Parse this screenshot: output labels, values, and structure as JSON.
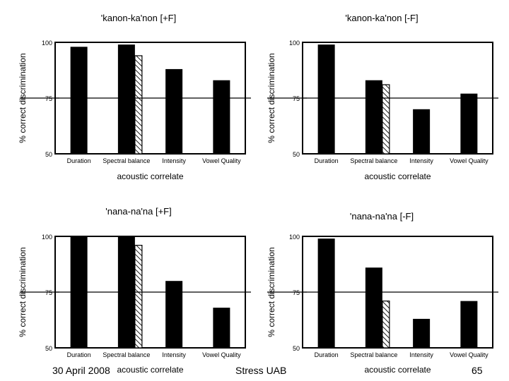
{
  "slide": {
    "footer_date": "30 April 2008",
    "footer_center": "Stress UAB",
    "page_number": "65"
  },
  "chart_data": [
    {
      "type": "bar",
      "title": "'kanon-ka'non [+F]",
      "xlabel": "acoustic correlate",
      "ylabel": "% correct discrimination",
      "ylim": [
        50,
        100
      ],
      "yticks": [
        "100",
        "75",
        "50"
      ],
      "reference_line": 75,
      "categories": [
        "Duration",
        "Spectral balance",
        "Intensity",
        "Vowel Quality"
      ],
      "series": [
        {
          "name": "solid",
          "values": [
            98,
            99,
            88,
            83
          ]
        },
        {
          "name": "hatched",
          "values": [
            null,
            94,
            null,
            null
          ]
        }
      ]
    },
    {
      "type": "bar",
      "title": "'kanon-ka'non [-F]",
      "xlabel": "acoustic correlate",
      "ylabel": "% correct discrimination",
      "ylim": [
        50,
        100
      ],
      "yticks": [
        "100",
        "75",
        "50"
      ],
      "reference_line": 75,
      "categories": [
        "Duration",
        "Spectral balance",
        "Intensity",
        "Vowel Quality"
      ],
      "series": [
        {
          "name": "solid",
          "values": [
            99,
            83,
            70,
            77
          ]
        },
        {
          "name": "hatched",
          "values": [
            null,
            81,
            null,
            null
          ]
        }
      ]
    },
    {
      "type": "bar",
      "title": "'nana-na'na [+F]",
      "xlabel": "acoustic correlate",
      "ylabel": "% correct discrimination",
      "ylim": [
        50,
        100
      ],
      "yticks": [
        "100",
        "75",
        "50"
      ],
      "reference_line": 75,
      "categories": [
        "Duration",
        "Spectral balance",
        "Intensity",
        "Vowel Quality"
      ],
      "series": [
        {
          "name": "solid",
          "values": [
            100,
            100,
            80,
            68
          ]
        },
        {
          "name": "hatched",
          "values": [
            null,
            96,
            null,
            null
          ]
        }
      ]
    },
    {
      "type": "bar",
      "title": "'nana-na'na [-F]",
      "xlabel": "acoustic correlate",
      "ylabel": "% correct discrimination",
      "ylim": [
        50,
        100
      ],
      "yticks": [
        "100",
        "75",
        "50"
      ],
      "reference_line": 75,
      "categories": [
        "Duration",
        "Spectral balance",
        "Intensity",
        "Vowel Quality"
      ],
      "series": [
        {
          "name": "solid",
          "values": [
            99,
            86,
            63,
            71
          ]
        },
        {
          "name": "hatched",
          "values": [
            null,
            71,
            null,
            null
          ]
        }
      ]
    }
  ]
}
